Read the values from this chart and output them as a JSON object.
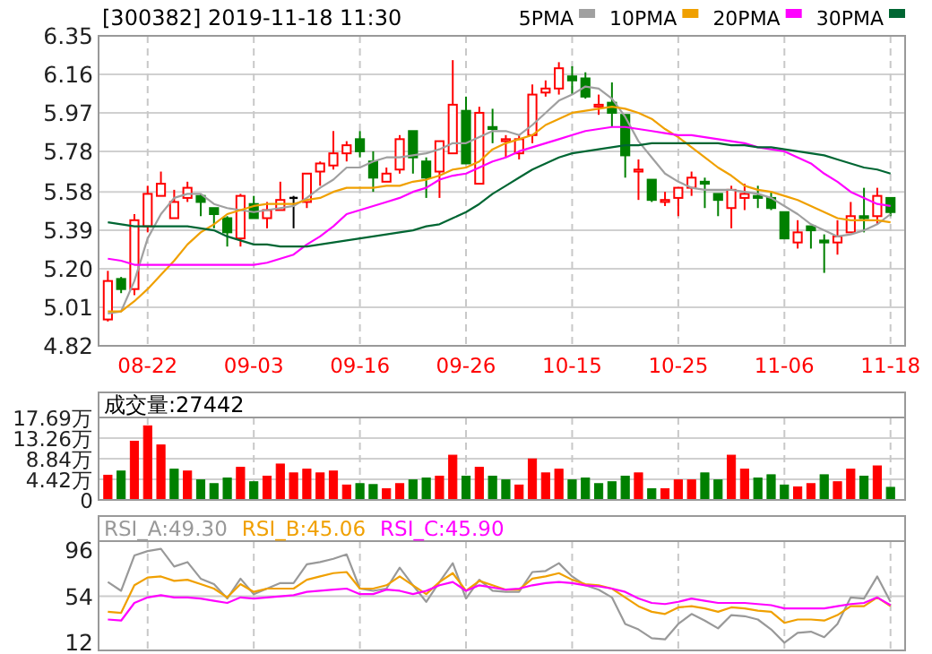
{
  "chart_data": [
    {
      "type": "candlestick",
      "title": "[300382] 2019-11-18 11:30",
      "categories": [
        null,
        null,
        null,
        "08-22",
        null,
        null,
        null,
        null,
        null,
        null,
        null,
        "09-03",
        null,
        null,
        null,
        null,
        null,
        null,
        null,
        "09-16",
        null,
        null,
        null,
        null,
        null,
        null,
        null,
        "09-26",
        null,
        null,
        null,
        null,
        null,
        null,
        null,
        "10-15",
        null,
        null,
        null,
        null,
        null,
        null,
        null,
        "10-25",
        null,
        null,
        null,
        null,
        null,
        null,
        null,
        "11-06",
        null,
        null,
        null,
        null,
        null,
        null,
        null,
        "11-18"
      ],
      "ohlc": [
        [
          4.95,
          5.19,
          4.94,
          5.14
        ],
        [
          5.15,
          5.16,
          5.08,
          5.1
        ],
        [
          5.1,
          5.47,
          5.07,
          5.44
        ],
        [
          5.41,
          5.61,
          5.38,
          5.57
        ],
        [
          5.56,
          5.68,
          5.56,
          5.62
        ],
        [
          5.45,
          5.59,
          5.45,
          5.53
        ],
        [
          5.55,
          5.63,
          5.53,
          5.6
        ],
        [
          5.56,
          5.57,
          5.46,
          5.53
        ],
        [
          5.5,
          5.5,
          5.4,
          5.47
        ],
        [
          5.45,
          5.46,
          5.31,
          5.38
        ],
        [
          5.35,
          5.57,
          5.31,
          5.56
        ],
        [
          5.52,
          5.56,
          5.45,
          5.45
        ],
        [
          5.45,
          5.53,
          5.4,
          5.49
        ],
        [
          5.49,
          5.63,
          5.49,
          5.54
        ],
        [
          5.55,
          5.56,
          5.4,
          5.55
        ],
        [
          5.53,
          5.67,
          5.5,
          5.67
        ],
        [
          5.68,
          5.73,
          5.61,
          5.72
        ],
        [
          5.71,
          5.88,
          5.69,
          5.77
        ],
        [
          5.77,
          5.83,
          5.73,
          5.81
        ],
        [
          5.84,
          5.88,
          5.75,
          5.78
        ],
        [
          5.73,
          5.78,
          5.58,
          5.65
        ],
        [
          5.63,
          5.7,
          5.63,
          5.67
        ],
        [
          5.69,
          5.86,
          5.67,
          5.84
        ],
        [
          5.88,
          5.88,
          5.67,
          5.75
        ],
        [
          5.73,
          5.75,
          5.55,
          5.65
        ],
        [
          5.68,
          5.83,
          5.55,
          5.83
        ],
        [
          5.77,
          6.23,
          5.77,
          6.01
        ],
        [
          5.98,
          6.05,
          5.72,
          5.72
        ],
        [
          5.62,
          6.0,
          5.62,
          5.97
        ],
        [
          5.9,
          5.99,
          5.82,
          5.89
        ],
        [
          5.83,
          5.86,
          5.75,
          5.84
        ],
        [
          5.77,
          5.86,
          5.74,
          5.84
        ],
        [
          5.86,
          6.11,
          5.82,
          6.06
        ],
        [
          6.07,
          6.13,
          6.05,
          6.09
        ],
        [
          6.09,
          6.22,
          6.06,
          6.19
        ],
        [
          6.15,
          6.2,
          6.06,
          6.13
        ],
        [
          6.14,
          6.17,
          6.04,
          6.05
        ],
        [
          6.0,
          6.06,
          5.96,
          6.01
        ],
        [
          6.02,
          6.12,
          5.9,
          5.97
        ],
        [
          5.96,
          5.96,
          5.65,
          5.76
        ],
        [
          5.68,
          5.74,
          5.54,
          5.69
        ],
        [
          5.64,
          5.64,
          5.53,
          5.54
        ],
        [
          5.53,
          5.58,
          5.51,
          5.54
        ],
        [
          5.55,
          5.6,
          5.46,
          5.6
        ],
        [
          5.6,
          5.68,
          5.56,
          5.65
        ],
        [
          5.63,
          5.65,
          5.5,
          5.62
        ],
        [
          5.57,
          5.57,
          5.46,
          5.54
        ],
        [
          5.5,
          5.61,
          5.4,
          5.59
        ],
        [
          5.55,
          5.62,
          5.49,
          5.57
        ],
        [
          5.56,
          5.61,
          5.5,
          5.55
        ],
        [
          5.55,
          5.58,
          5.49,
          5.5
        ],
        [
          5.48,
          5.48,
          5.35,
          5.35
        ],
        [
          5.33,
          5.44,
          5.3,
          5.38
        ],
        [
          5.41,
          5.41,
          5.3,
          5.39
        ],
        [
          5.34,
          5.37,
          5.18,
          5.33
        ],
        [
          5.33,
          5.44,
          5.27,
          5.36
        ],
        [
          5.38,
          5.53,
          5.38,
          5.46
        ],
        [
          5.46,
          5.6,
          5.38,
          5.45
        ],
        [
          5.46,
          5.6,
          5.42,
          5.56
        ],
        [
          5.55,
          5.55,
          5.46,
          5.48
        ]
      ],
      "colors": [
        "#ff0000",
        "#008000",
        "#ff0000",
        "#ff0000",
        "#ff0000",
        "#ff0000",
        "#ff0000",
        "#008000",
        "#008000",
        "#008000",
        "#ff0000",
        "#008000",
        "#ff0000",
        "#ff0000",
        "#000000",
        "#ff0000",
        "#ff0000",
        "#ff0000",
        "#ff0000",
        "#008000",
        "#008000",
        "#ff0000",
        "#ff0000",
        "#008000",
        "#008000",
        "#ff0000",
        "#ff0000",
        "#008000",
        "#ff0000",
        "#008000",
        "#ff0000",
        "#ff0000",
        "#ff0000",
        "#ff0000",
        "#ff0000",
        "#008000",
        "#008000",
        "#ff0000",
        "#008000",
        "#008000",
        "#ff0000",
        "#008000",
        "#ff0000",
        "#ff0000",
        "#ff0000",
        "#008000",
        "#008000",
        "#ff0000",
        "#ff0000",
        "#008000",
        "#008000",
        "#008000",
        "#ff0000",
        "#008000",
        "#008000",
        "#ff0000",
        "#ff0000",
        "#008000",
        "#ff0000",
        "#008000"
      ],
      "series": [
        {
          "name": "5PMA",
          "type": "line",
          "color": "#a0a0a0",
          "values": [
            4.98,
            4.99,
            5.14,
            5.35,
            5.47,
            5.55,
            5.57,
            5.57,
            5.52,
            5.5,
            5.49,
            5.48,
            5.49,
            5.5,
            5.51,
            5.55,
            5.6,
            5.64,
            5.7,
            5.7,
            5.73,
            5.75,
            5.75,
            5.76,
            5.77,
            5.79,
            5.82,
            5.82,
            5.85,
            5.88,
            5.88,
            5.86,
            5.91,
            5.97,
            6.03,
            6.06,
            6.1,
            6.09,
            6.04,
            5.95,
            5.83,
            5.75,
            5.67,
            5.63,
            5.6,
            5.59,
            5.59,
            5.59,
            5.58,
            5.57,
            5.55,
            5.51,
            5.47,
            5.42,
            5.39,
            5.36,
            5.37,
            5.39,
            5.42,
            5.47
          ]
        },
        {
          "name": "10PMA",
          "type": "line",
          "color": "#f0a000",
          "values": [
            4.99,
            4.99,
            5.04,
            5.1,
            5.17,
            5.24,
            5.32,
            5.38,
            5.42,
            5.47,
            5.49,
            5.51,
            5.52,
            5.52,
            5.52,
            5.54,
            5.55,
            5.58,
            5.6,
            5.6,
            5.6,
            5.61,
            5.61,
            5.63,
            5.64,
            5.66,
            5.69,
            5.7,
            5.73,
            5.79,
            5.82,
            5.84,
            5.86,
            5.91,
            5.94,
            5.97,
            5.98,
            5.99,
            6.0,
            5.99,
            5.97,
            5.94,
            5.89,
            5.85,
            5.8,
            5.75,
            5.7,
            5.66,
            5.61,
            5.59,
            5.58,
            5.56,
            5.54,
            5.51,
            5.48,
            5.45,
            5.44,
            5.44,
            5.44,
            5.43
          ]
        },
        {
          "name": "20PMA",
          "type": "line",
          "color": "#ff00ff",
          "values": [
            5.25,
            5.24,
            5.22,
            5.22,
            5.22,
            5.22,
            5.22,
            5.22,
            5.22,
            5.22,
            5.22,
            5.22,
            5.23,
            5.25,
            5.27,
            5.32,
            5.36,
            5.41,
            5.47,
            5.49,
            5.51,
            5.53,
            5.55,
            5.58,
            5.6,
            5.64,
            5.66,
            5.67,
            5.7,
            5.73,
            5.75,
            5.78,
            5.8,
            5.82,
            5.84,
            5.86,
            5.88,
            5.89,
            5.9,
            5.9,
            5.89,
            5.88,
            5.87,
            5.86,
            5.86,
            5.85,
            5.84,
            5.83,
            5.82,
            5.8,
            5.79,
            5.78,
            5.75,
            5.72,
            5.67,
            5.63,
            5.58,
            5.55,
            5.52,
            5.51
          ]
        },
        {
          "name": "30PMA",
          "type": "line",
          "color": "#006633",
          "values": [
            5.43,
            5.42,
            5.41,
            5.41,
            5.41,
            5.41,
            5.41,
            5.4,
            5.39,
            5.36,
            5.34,
            5.32,
            5.32,
            5.31,
            5.31,
            5.31,
            5.32,
            5.33,
            5.34,
            5.35,
            5.36,
            5.37,
            5.38,
            5.39,
            5.41,
            5.42,
            5.45,
            5.48,
            5.52,
            5.57,
            5.61,
            5.65,
            5.69,
            5.72,
            5.75,
            5.77,
            5.78,
            5.79,
            5.8,
            5.81,
            5.81,
            5.82,
            5.82,
            5.82,
            5.82,
            5.82,
            5.82,
            5.81,
            5.81,
            5.8,
            5.8,
            5.79,
            5.78,
            5.77,
            5.76,
            5.74,
            5.72,
            5.7,
            5.69,
            5.67
          ]
        }
      ],
      "ylim": [
        4.82,
        6.35
      ],
      "yticks": [
        6.35,
        6.16,
        5.97,
        5.78,
        5.58,
        5.39,
        {
          "value": 5.2,
          "label": "5.20"
        },
        5.01,
        4.82
      ],
      "grid": true,
      "legend": "top right"
    },
    {
      "type": "bar",
      "title": "成交量:27442",
      "categories": [
        null,
        null,
        null,
        null,
        null,
        null,
        null,
        null,
        null,
        null,
        null,
        null,
        null,
        null,
        null,
        null,
        null,
        null,
        null,
        null,
        null,
        null,
        null,
        null,
        null,
        null,
        null,
        null,
        null,
        null,
        null,
        null,
        null,
        null,
        null,
        null,
        null,
        null,
        null,
        null,
        null,
        null,
        null,
        null,
        null,
        null,
        null,
        null,
        null,
        null,
        null,
        null,
        null,
        null,
        null,
        null,
        null,
        null,
        null,
        null
      ],
      "values": [
        5.3,
        6.2,
        12.6,
        15.9,
        11.8,
        6.6,
        6.2,
        4.3,
        3.5,
        4.7,
        7.0,
        3.9,
        5.1,
        7.7,
        5.8,
        6.6,
        5.8,
        6.2,
        3.2,
        3.5,
        3.3,
        2.4,
        3.5,
        4.3,
        4.7,
        5.1,
        9.6,
        5.1,
        7.0,
        5.1,
        4.3,
        3.2,
        8.8,
        5.8,
        6.6,
        4.3,
        4.7,
        3.5,
        3.9,
        5.1,
        5.8,
        2.4,
        2.4,
        4.3,
        4.3,
        5.8,
        4.3,
        9.6,
        6.6,
        4.7,
        5.4,
        3.2,
        2.8,
        3.5,
        5.4,
        3.9,
        6.6,
        5.1,
        7.3,
        2.7
      ],
      "colors": [
        "#ff0000",
        "#008000",
        "#ff0000",
        "#ff0000",
        "#ff0000",
        "#008000",
        "#ff0000",
        "#008000",
        "#008000",
        "#008000",
        "#ff0000",
        "#008000",
        "#ff0000",
        "#ff0000",
        "#ff0000",
        "#ff0000",
        "#ff0000",
        "#ff0000",
        "#ff0000",
        "#008000",
        "#008000",
        "#ff0000",
        "#ff0000",
        "#008000",
        "#008000",
        "#ff0000",
        "#ff0000",
        "#008000",
        "#ff0000",
        "#008000",
        "#008000",
        "#ff0000",
        "#ff0000",
        "#ff0000",
        "#ff0000",
        "#008000",
        "#008000",
        "#008000",
        "#008000",
        "#008000",
        "#ff0000",
        "#008000",
        "#ff0000",
        "#ff0000",
        "#ff0000",
        "#008000",
        "#008000",
        "#ff0000",
        "#ff0000",
        "#008000",
        "#008000",
        "#008000",
        "#ff0000",
        "#ff0000",
        "#008000",
        "#ff0000",
        "#ff0000",
        "#008000",
        "#ff0000",
        "#008000"
      ],
      "ylim": [
        0,
        17.69
      ],
      "yticks": [
        {
          "value": 17.69,
          "label": "17.69万"
        },
        {
          "value": 13.26,
          "label": "13.26万"
        },
        {
          "value": 8.84,
          "label": "8.84万"
        },
        {
          "value": 4.42,
          "label": "4.42万"
        },
        0
      ],
      "grid": true,
      "tick_labels": "y"
    },
    {
      "type": "line",
      "categories": [
        null,
        null,
        null,
        null,
        null,
        null,
        null,
        null,
        null,
        null,
        null,
        null,
        null,
        null,
        null,
        null,
        null,
        null,
        null,
        null,
        null,
        null,
        null,
        null,
        null,
        null,
        null,
        null,
        null,
        null,
        null,
        null,
        null,
        null,
        null,
        null,
        null,
        null,
        null,
        null,
        null,
        null,
        null,
        null,
        null,
        null,
        null,
        null,
        null,
        null,
        null,
        null,
        null,
        null,
        null,
        null,
        null,
        null,
        null,
        null
      ],
      "series": [
        {
          "name": "RSI_A:49.30",
          "color": "#999999",
          "values": [
            67,
            59,
            91,
            95,
            97,
            81,
            85,
            70,
            65,
            52,
            70,
            56,
            61,
            66,
            66,
            83,
            85,
            88,
            92,
            61,
            59,
            61,
            80,
            64,
            49,
            67,
            84,
            52,
            69,
            59,
            58,
            58,
            76,
            77,
            84,
            72,
            64,
            60,
            53,
            29,
            24,
            16,
            15,
            29,
            38,
            32,
            25,
            37,
            36,
            33,
            24,
            12,
            21,
            22,
            17,
            29,
            53,
            52,
            72,
            49
          ]
        },
        {
          "name": "RSI_B:45.06",
          "color": "#f0a000",
          "values": [
            40,
            39,
            64,
            71,
            72,
            68,
            69,
            65,
            61,
            53,
            65,
            58,
            61,
            61,
            61,
            69,
            72,
            75,
            76,
            61,
            61,
            64,
            72,
            64,
            56,
            67,
            75,
            59,
            68,
            64,
            60,
            60,
            70,
            72,
            75,
            69,
            65,
            64,
            61,
            53,
            45,
            40,
            38,
            44,
            45,
            43,
            40,
            44,
            43,
            41,
            40,
            30,
            33,
            33,
            32,
            37,
            45,
            45,
            53,
            45
          ]
        },
        {
          "name": "RSI_C:45.90",
          "color": "#ff00ff",
          "values": [
            33,
            32,
            48,
            53,
            55,
            53,
            53,
            52,
            50,
            48,
            53,
            52,
            53,
            54,
            55,
            58,
            59,
            60,
            61,
            56,
            56,
            60,
            59,
            56,
            59,
            64,
            67,
            59,
            64,
            62,
            60,
            61,
            64,
            66,
            67,
            66,
            64,
            63,
            61,
            58,
            52,
            48,
            47,
            49,
            52,
            50,
            48,
            48,
            48,
            47,
            46,
            43,
            43,
            43,
            43,
            45,
            47,
            48,
            53,
            46
          ]
        }
      ],
      "ylim": [
        5,
        104
      ],
      "yticks": [
        96,
        54,
        12
      ],
      "ref_lines": [
        {
          "axis": "y",
          "value": 54,
          "color": "#cccccc"
        }
      ],
      "grid": "x",
      "tick_labels": "y",
      "legend": "top left"
    }
  ]
}
